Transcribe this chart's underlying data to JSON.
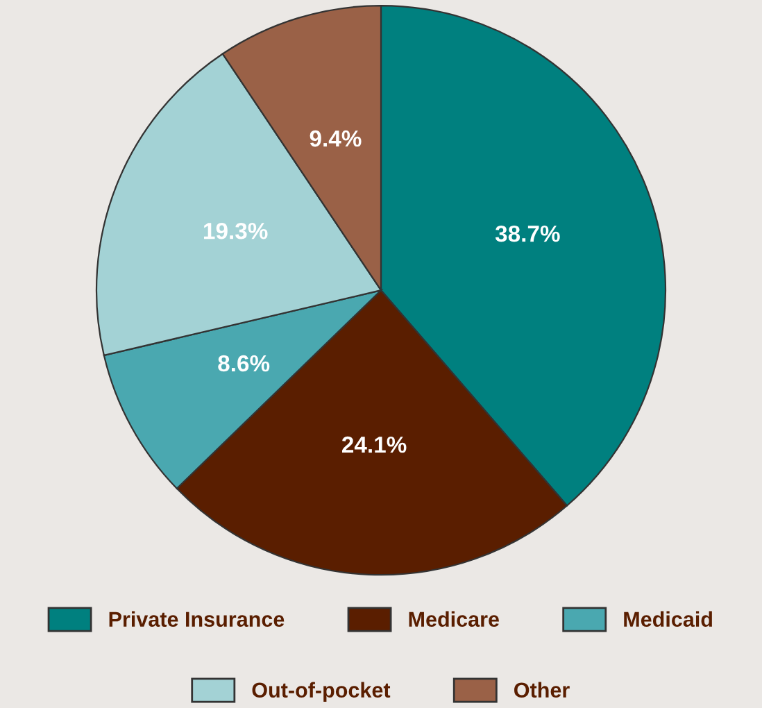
{
  "chart_data": {
    "type": "pie",
    "categories": [
      "Private Insurance",
      "Medicare",
      "Medicaid",
      "Out-of-pocket",
      "Other"
    ],
    "values": [
      38.7,
      24.1,
      8.6,
      19.3,
      9.4
    ],
    "colors": [
      "#00807f",
      "#5a1e00",
      "#4aa8b0",
      "#a3d2d5",
      "#9a6147"
    ],
    "value_labels": [
      "38.7%",
      "24.1%",
      "8.6%",
      "19.3%",
      "9.4%"
    ],
    "legend": "bottom"
  }
}
